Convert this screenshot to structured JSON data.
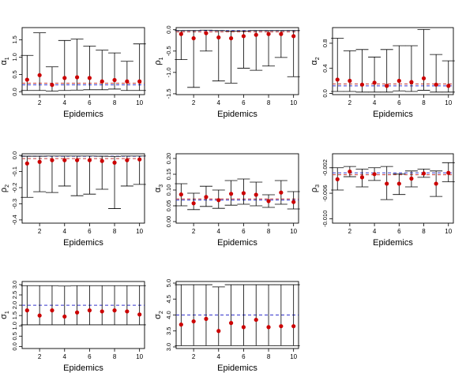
{
  "chart_data": [
    {
      "type": "scatter",
      "ylabel": "α₁",
      "ysym": "α",
      "ysub": "1",
      "xlabel": "Epidemics",
      "x": [
        1,
        2,
        3,
        4,
        5,
        6,
        7,
        8,
        9,
        10
      ],
      "xticks": [
        2,
        4,
        6,
        8,
        10
      ],
      "xlim": [
        0.6,
        10.4
      ],
      "ylim": [
        -0.08,
        1.85
      ],
      "yticks": [
        0.0,
        0.5,
        1.0,
        1.5
      ],
      "yticklabels": [
        "0.0",
        "0.5",
        "1.0",
        "1.5"
      ],
      "series": [
        {
          "values": [
            0.35,
            0.48,
            0.2,
            0.4,
            0.42,
            0.4,
            0.3,
            0.34,
            0.3,
            0.3
          ],
          "lower": [
            0.04,
            0.04,
            0.02,
            0.04,
            0.05,
            0.06,
            0.06,
            0.08,
            0.04,
            0.04
          ],
          "upper": [
            1.05,
            1.7,
            0.72,
            1.48,
            1.52,
            1.32,
            1.2,
            1.12,
            0.88,
            1.38
          ]
        }
      ],
      "reference": [
        0.2,
        0.25
      ]
    },
    {
      "type": "scatter",
      "ylabel": "ρ₁",
      "ysym": "ρ",
      "ysub": "1",
      "xlabel": "Epidemics",
      "x": [
        1,
        2,
        3,
        4,
        5,
        6,
        7,
        8,
        9,
        10
      ],
      "xticks": [
        2,
        4,
        6,
        8,
        10
      ],
      "xlim": [
        0.6,
        10.4
      ],
      "ylim": [
        -1.52,
        0.05
      ],
      "yticks": [
        -1.5,
        -1.0,
        -0.5,
        0.0
      ],
      "yticklabels": [
        "-1.5",
        "-1.0",
        "-0.5",
        "0.0"
      ],
      "series": [
        {
          "values": [
            -0.1,
            -0.2,
            -0.08,
            -0.18,
            -0.2,
            -0.15,
            -0.12,
            -0.1,
            -0.1,
            -0.15
          ],
          "lower": [
            -0.7,
            -1.35,
            -0.5,
            -1.2,
            -1.25,
            -0.9,
            -0.95,
            -0.85,
            -0.65,
            -1.1
          ],
          "upper": [
            -0.02,
            -0.02,
            -0.01,
            -0.02,
            -0.03,
            -0.03,
            -0.02,
            -0.02,
            -0.02,
            -0.02
          ]
        }
      ],
      "reference": [
        -0.02,
        -0.05
      ]
    },
    {
      "type": "scatter",
      "ylabel": "α₂",
      "ysym": "α",
      "ysub": "2",
      "xlabel": "Epidemics",
      "x": [
        1,
        2,
        3,
        4,
        5,
        6,
        7,
        8,
        9,
        10
      ],
      "xticks": [
        2,
        4,
        6,
        8,
        10
      ],
      "xlim": [
        0.6,
        10.4
      ],
      "ylim": [
        -0.02,
        1.05
      ],
      "yticks": [
        0.0,
        0.4,
        0.8
      ],
      "yticklabels": [
        "0.0",
        "0.4",
        "0.8"
      ],
      "series": [
        {
          "values": [
            0.22,
            0.2,
            0.14,
            0.17,
            0.12,
            0.2,
            0.18,
            0.24,
            0.14,
            0.12
          ],
          "lower": [
            0.03,
            0.03,
            0.02,
            0.02,
            0.02,
            0.04,
            0.03,
            0.05,
            0.02,
            0.02
          ],
          "upper": [
            0.88,
            0.68,
            0.7,
            0.58,
            0.7,
            0.76,
            0.76,
            1.02,
            0.62,
            0.52
          ]
        }
      ],
      "reference": [
        0.12,
        0.15
      ]
    },
    {
      "type": "scatter",
      "ylabel": "ρ₂",
      "ysym": "ρ",
      "ysub": "2",
      "xlabel": "Epidemics",
      "x": [
        1,
        2,
        3,
        4,
        5,
        6,
        7,
        8,
        9,
        10
      ],
      "xticks": [
        2,
        4,
        6,
        8,
        10
      ],
      "xlim": [
        0.6,
        10.4
      ],
      "ylim": [
        -0.42,
        0.01
      ],
      "yticks": [
        -0.4,
        -0.3,
        -0.2,
        -0.1,
        0.0
      ],
      "yticklabels": [
        "-0.4",
        "-0.3",
        "-0.2",
        "-0.1",
        "0.0"
      ],
      "series": [
        {
          "values": [
            -0.05,
            -0.04,
            -0.03,
            -0.03,
            -0.03,
            -0.03,
            -0.035,
            -0.045,
            -0.03,
            -0.025
          ],
          "lower": [
            -0.26,
            -0.225,
            -0.23,
            -0.19,
            -0.25,
            -0.24,
            -0.21,
            -0.33,
            -0.19,
            -0.18
          ],
          "upper": [
            -0.005,
            -0.005,
            -0.004,
            -0.004,
            -0.004,
            -0.004,
            -0.005,
            -0.006,
            -0.004,
            -0.004
          ]
        }
      ],
      "reference": [
        -0.005,
        -0.02
      ]
    },
    {
      "type": "scatter",
      "ylabel": "α₃",
      "ysym": "α",
      "ysub": "3",
      "xlabel": "Epidemics",
      "x": [
        1,
        2,
        3,
        4,
        5,
        6,
        7,
        8,
        9,
        10
      ],
      "xticks": [
        2,
        4,
        6,
        8,
        10
      ],
      "xlim": [
        0.6,
        10.4
      ],
      "ylim": [
        -0.005,
        0.215
      ],
      "yticks": [
        0.0,
        0.05,
        0.1,
        0.15,
        0.2
      ],
      "yticklabels": [
        "0.00",
        "0.05",
        "0.10",
        "0.15",
        "0.20"
      ],
      "series": [
        {
          "values": [
            0.086,
            0.058,
            0.078,
            0.068,
            0.088,
            0.09,
            0.085,
            0.065,
            0.092,
            0.062
          ],
          "lower": [
            0.05,
            0.038,
            0.048,
            0.042,
            0.052,
            0.055,
            0.05,
            0.045,
            0.055,
            0.04
          ],
          "upper": [
            0.12,
            0.09,
            0.112,
            0.1,
            0.13,
            0.135,
            0.125,
            0.085,
            0.13,
            0.095
          ]
        }
      ],
      "reference": [
        0.068,
        0.072
      ]
    },
    {
      "type": "scatter",
      "ylabel": "ρ₃",
      "ysym": "ρ",
      "ysub": "3",
      "xlabel": "Epidemics",
      "x": [
        1,
        2,
        3,
        4,
        5,
        6,
        7,
        8,
        9,
        10
      ],
      "xticks": [
        2,
        4,
        6,
        8,
        10
      ],
      "xlim": [
        0.6,
        10.4
      ],
      "ylim": [
        -0.0107,
        0.0002
      ],
      "yticks": [
        -0.01,
        -0.006,
        -0.002
      ],
      "yticklabels": [
        "-0.010",
        "-0.006",
        "-0.002"
      ],
      "series": [
        {
          "values": [
            -0.0038,
            -0.0026,
            -0.0035,
            -0.003,
            -0.0045,
            -0.0045,
            -0.0037,
            -0.0029,
            -0.0045,
            -0.0028
          ],
          "lower": [
            -0.0055,
            -0.0034,
            -0.005,
            -0.004,
            -0.007,
            -0.0062,
            -0.005,
            -0.0035,
            -0.0065,
            -0.0042
          ],
          "upper": [
            -0.002,
            -0.0018,
            -0.0022,
            -0.002,
            -0.0018,
            -0.003,
            -0.0025,
            -0.0022,
            -0.0025,
            -0.0012
          ]
        }
      ],
      "reference": [
        -0.0028,
        -0.0031
      ]
    },
    {
      "type": "scatter",
      "ylabel": "σ₁",
      "ysym": "σ",
      "ysub": "1",
      "xlabel": "Epidemics",
      "x": [
        1,
        2,
        3,
        4,
        5,
        6,
        7,
        8,
        9,
        10
      ],
      "xticks": [
        2,
        4,
        6,
        8,
        10
      ],
      "xlim": [
        0.6,
        10.4
      ],
      "ylim": [
        -0.1,
        3.15
      ],
      "yticks": [
        0.0,
        0.5,
        1.0,
        1.5,
        2.0,
        2.5,
        3.0
      ],
      "yticklabels": [
        "0.0",
        "0.5",
        "1.0",
        "1.5",
        "2.0",
        "2.5",
        "3.0"
      ],
      "series": [
        {
          "values": [
            1.75,
            1.5,
            1.75,
            1.45,
            1.65,
            1.75,
            1.7,
            1.75,
            1.7,
            1.55
          ],
          "lower": [
            1.05,
            1.05,
            1.05,
            1.05,
            1.05,
            1.05,
            1.05,
            1.05,
            1.05,
            1.05
          ],
          "upper": [
            2.95,
            2.95,
            2.95,
            2.93,
            2.95,
            2.95,
            2.95,
            2.95,
            2.95,
            2.95
          ]
        }
      ],
      "reference": [
        2.0
      ]
    },
    {
      "type": "scatter",
      "ylabel": "σ₂",
      "ysym": "σ",
      "ysub": "2",
      "xlabel": "Epidemics",
      "x": [
        1,
        2,
        3,
        4,
        5,
        6,
        7,
        8,
        9,
        10
      ],
      "xticks": [
        2,
        4,
        6,
        8,
        10
      ],
      "xlim": [
        0.6,
        10.4
      ],
      "ylim": [
        2.95,
        5.05
      ],
      "yticks": [
        3.0,
        3.5,
        4.0,
        4.5,
        5.0
      ],
      "yticklabels": [
        "3.0",
        "3.5",
        "4.0",
        "4.5",
        "5.0"
      ],
      "series": [
        {
          "values": [
            3.7,
            3.8,
            3.88,
            3.5,
            3.75,
            3.62,
            3.85,
            3.62,
            3.65,
            3.65
          ],
          "lower": [
            3.04,
            3.04,
            3.04,
            3.04,
            3.04,
            3.04,
            3.04,
            3.04,
            3.04,
            3.04
          ],
          "upper": [
            4.95,
            4.95,
            4.95,
            4.88,
            4.95,
            4.95,
            4.95,
            4.95,
            4.95,
            4.95
          ]
        }
      ],
      "reference": [
        4.0
      ]
    }
  ],
  "colors": {
    "point": "#cc0000",
    "reference": "#3333cc",
    "bar": "#000000"
  }
}
